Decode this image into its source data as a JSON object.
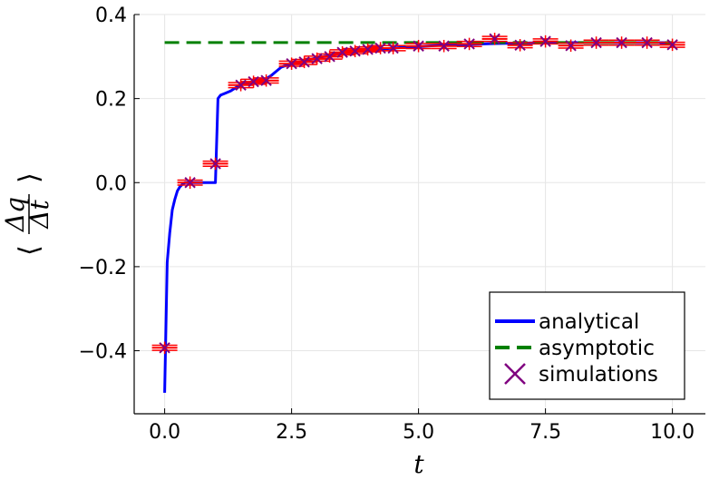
{
  "chart_data": {
    "type": "line",
    "xlabel": "t",
    "ylabel": "⟨Δq/Δt⟩",
    "ylabel_num": "Δq",
    "ylabel_den": "Δt",
    "xlim": [
      -0.6,
      10.65
    ],
    "ylim": [
      -0.55,
      0.4
    ],
    "x_ticks": [
      0.0,
      2.5,
      5.0,
      7.5,
      10.0
    ],
    "x_tick_labels": [
      "0.0",
      "2.5",
      "5.0",
      "7.5",
      "10.0"
    ],
    "y_ticks": [
      -0.4,
      -0.2,
      0.0,
      0.2,
      0.4
    ],
    "y_tick_labels": [
      "−0.4",
      "−0.2",
      "0.0",
      "0.2",
      "0.4"
    ],
    "grid": true,
    "legend_position": "bottom-right",
    "series": [
      {
        "name": "analytical",
        "style": "solid",
        "color": "#0000ff",
        "x": [
          0.0,
          0.05,
          0.1,
          0.15,
          0.2,
          0.25,
          0.3,
          0.35,
          0.4,
          0.5,
          0.6,
          0.75,
          0.9,
          1.0,
          1.05,
          1.1,
          1.2,
          1.3,
          1.4,
          1.5,
          1.6,
          1.75,
          1.9,
          2.0,
          2.1,
          2.2,
          2.3,
          2.5,
          2.75,
          3.0,
          3.25,
          3.5,
          3.75,
          4.0,
          4.5,
          5.0,
          5.5,
          6.0,
          6.5,
          7.0,
          7.5,
          8.0,
          8.5,
          9.0,
          9.5,
          10.0
        ],
        "y": [
          -0.5,
          -0.19,
          -0.12,
          -0.065,
          -0.04,
          -0.02,
          -0.01,
          -0.004,
          0.0,
          0.0,
          0.0,
          0.0,
          0.0,
          0.0,
          0.2,
          0.208,
          0.213,
          0.218,
          0.226,
          0.232,
          0.236,
          0.241,
          0.245,
          0.247,
          0.255,
          0.265,
          0.275,
          0.283,
          0.29,
          0.297,
          0.303,
          0.308,
          0.312,
          0.315,
          0.32,
          0.324,
          0.327,
          0.329,
          0.331,
          0.332,
          0.333,
          0.333,
          0.333,
          0.333,
          0.333,
          0.333
        ]
      },
      {
        "name": "asymptotic",
        "style": "dashed",
        "color": "#008000",
        "x": [
          0.0,
          10.0
        ],
        "y": [
          0.3333,
          0.3333
        ]
      }
    ],
    "scatter": {
      "name": "simulations",
      "marker_color": "#800080",
      "errorbar_color": "#ff0000",
      "x": [
        0.0,
        0.5,
        1.0,
        1.5,
        1.75,
        2.0,
        2.5,
        2.75,
        3.0,
        3.25,
        3.5,
        3.75,
        4.0,
        4.25,
        4.5,
        5.0,
        5.5,
        6.0,
        6.5,
        7.0,
        7.5,
        8.0,
        8.5,
        9.0,
        9.5,
        10.0
      ],
      "y": [
        -0.393,
        0.0,
        0.045,
        0.232,
        0.24,
        0.243,
        0.283,
        0.287,
        0.295,
        0.3,
        0.31,
        0.313,
        0.317,
        0.32,
        0.32,
        0.325,
        0.325,
        0.33,
        0.342,
        0.327,
        0.336,
        0.326,
        0.333,
        0.333,
        0.333,
        0.328
      ],
      "err_x": 0.25,
      "err_y": 0.006
    }
  }
}
